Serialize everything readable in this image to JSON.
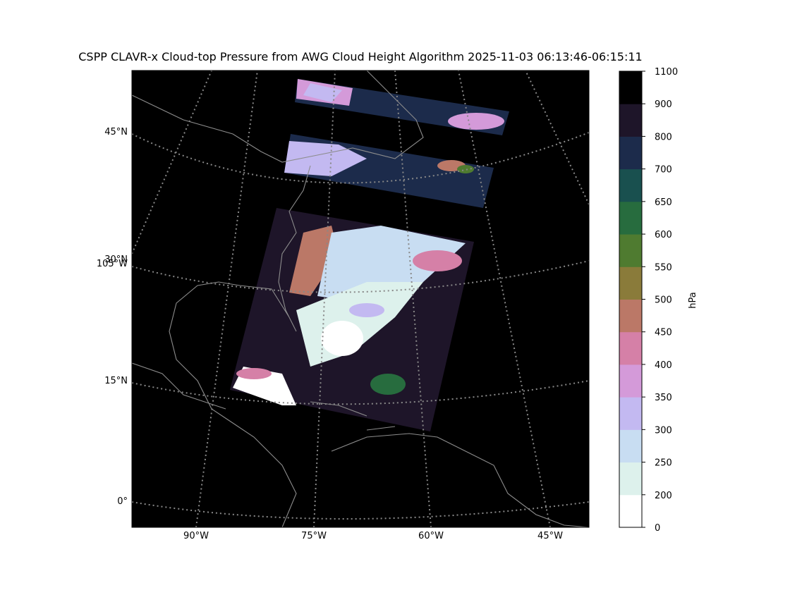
{
  "title": "CSPP CLAVR-x Cloud-top Pressure from AWG Cloud Height Algorithm 2025-11-03 06:13:46-06:15:11",
  "latitude_labels": [
    "45°N",
    "30°N",
    "15°N",
    "0°"
  ],
  "longitude_labels": [
    "105°W",
    "90°W",
    "75°W",
    "60°W",
    "45°W"
  ],
  "colorbar": {
    "label": "hPa",
    "ticks": [
      0,
      200,
      250,
      300,
      350,
      400,
      450,
      500,
      550,
      600,
      650,
      700,
      800,
      900,
      1100
    ],
    "colors": [
      "#ffffff",
      "#ddf1ec",
      "#c8ddf2",
      "#c3b9f1",
      "#d49ad9",
      "#d580a7",
      "#bb7867",
      "#8a7b3a",
      "#4f7b30",
      "#276c3e",
      "#19504f",
      "#1c2b4b",
      "#1e1529",
      "#000000"
    ]
  }
}
